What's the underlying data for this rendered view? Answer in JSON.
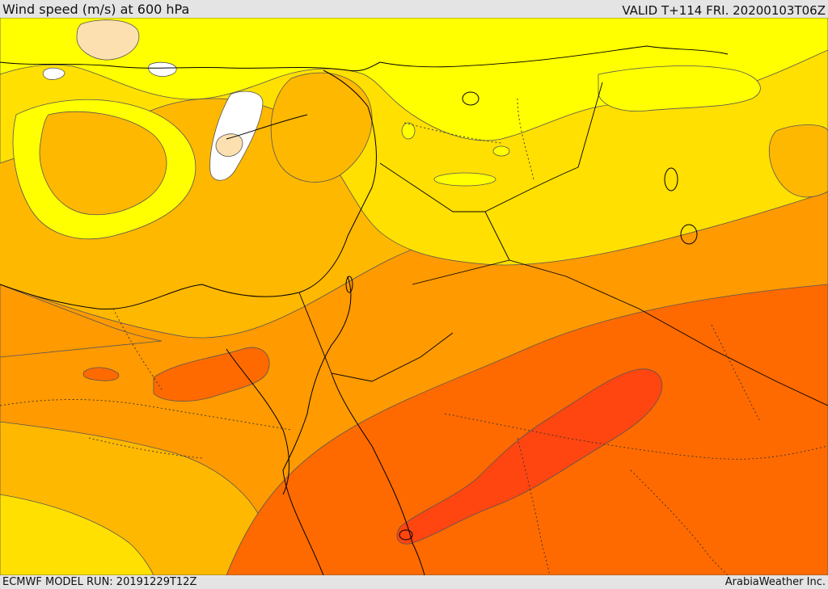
{
  "header": {
    "title": "Wind speed (m/s) at 600 hPa",
    "valid": "VALID T+114 FRI. 20200103T06Z"
  },
  "footer": {
    "model_run": "ECMWF MODEL RUN: 20191229T12Z",
    "credit": "ArabiaWeather Inc."
  },
  "map": {
    "variable": "wind speed",
    "level": "600 hPa",
    "colors": {
      "calm": "#ffffff",
      "light": "#fde0b0",
      "yellow": "#ffff00",
      "gold": "#ffe000",
      "amber": "#ffb800",
      "orange": "#ff9a00",
      "dark_orange": "#ff6a00",
      "red_orange": "#ff4510",
      "border": "#000000",
      "contour": "#555555"
    }
  }
}
